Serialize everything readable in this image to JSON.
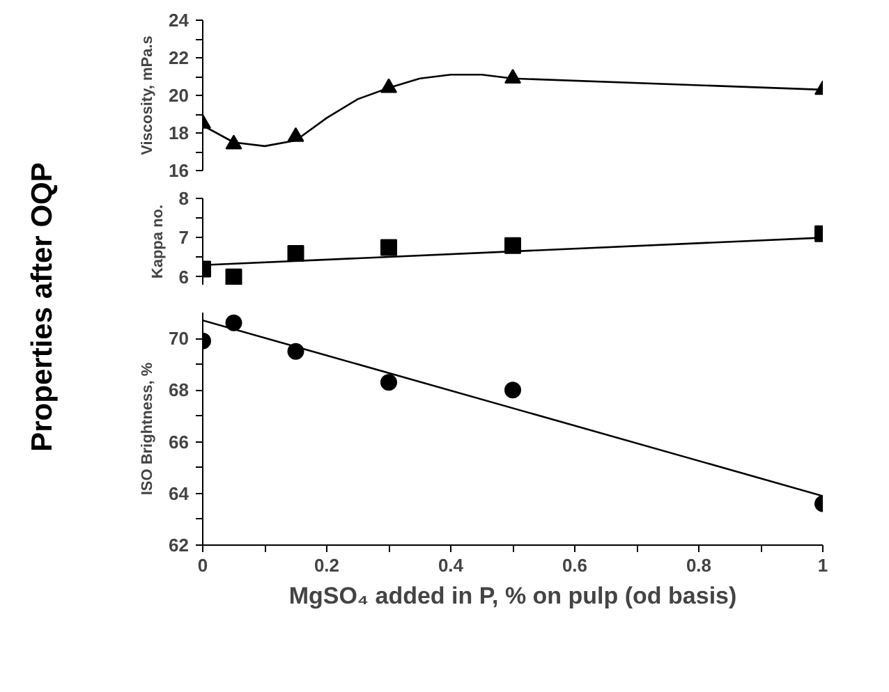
{
  "chart_data": [
    {
      "type": "scatter",
      "ylabel": "Viscosity, mPa.s",
      "annotations": [
        "Properties after OQP"
      ],
      "xlim": [
        0,
        1
      ],
      "ylim": [
        16,
        24
      ],
      "yticks": [
        16,
        {
          "value": 17,
          "label": null
        },
        18,
        {
          "value": 19,
          "label": null
        },
        20,
        {
          "value": 21,
          "label": null
        },
        22,
        {
          "value": 23,
          "label": null
        },
        24
      ],
      "tick_labels": "y",
      "grid": false,
      "series": [
        {
          "marker": "triangle",
          "color": "#000000",
          "x": [
            0,
            0.05,
            0.15,
            0.3,
            0.5,
            1
          ],
          "values": [
            18.5,
            17.4,
            17.8,
            20.4,
            20.9,
            20.3
          ]
        },
        {
          "type": "line",
          "marker": "none",
          "line_style": "solid",
          "color": "#000000",
          "x": [
            0,
            0.05,
            0.1,
            0.15,
            0.2,
            0.25,
            0.3,
            0.35,
            0.4,
            0.45,
            0.5,
            1
          ],
          "values": [
            18.4,
            17.5,
            17.3,
            17.6,
            18.8,
            19.8,
            20.4,
            20.9,
            21.1,
            21.1,
            20.9,
            20.3
          ]
        }
      ]
    },
    {
      "type": "scatter",
      "ylabel": "Kappa no.",
      "xlim": [
        0,
        1
      ],
      "ylim": [
        5.8,
        8
      ],
      "yticks": [
        6,
        {
          "value": 6.5,
          "label": null
        },
        7,
        {
          "value": 7.5,
          "label": null
        },
        8
      ],
      "tick_labels": "y",
      "grid": false,
      "series": [
        {
          "marker": "square",
          "color": "#000000",
          "x": [
            0,
            0.05,
            0.15,
            0.3,
            0.5,
            1
          ],
          "values": [
            6.2,
            6.0,
            6.6,
            6.75,
            6.8,
            7.1
          ]
        },
        {
          "type": "line",
          "marker": "none",
          "line_style": "solid",
          "color": "#000000",
          "x": [
            0,
            1
          ],
          "values": [
            6.3,
            7.0
          ]
        }
      ]
    },
    {
      "type": "scatter",
      "ylabel": "ISO Brightness, %",
      "xlabel": "MgSO₄ added in P, % on pulp (od basis)",
      "xlim": [
        0,
        1
      ],
      "xticks": [
        0,
        {
          "value": 0.1,
          "label": null
        },
        0.2,
        {
          "value": 0.3,
          "label": null
        },
        0.4,
        {
          "value": 0.5,
          "label": null
        },
        0.6,
        {
          "value": 0.7,
          "label": null
        },
        0.8,
        {
          "value": 0.9,
          "label": null
        },
        1
      ],
      "ylim": [
        62,
        71
      ],
      "yticks": [
        62,
        {
          "value": 63,
          "label": null
        },
        64,
        {
          "value": 65,
          "label": null
        },
        66,
        {
          "value": 67,
          "label": null
        },
        68,
        {
          "value": 69,
          "label": null
        },
        70
      ],
      "grid": false,
      "series": [
        {
          "marker": "circle",
          "color": "#000000",
          "x": [
            0,
            0.05,
            0.15,
            0.3,
            0.5,
            1
          ],
          "values": [
            69.9,
            70.6,
            69.5,
            68.3,
            68.0,
            63.6
          ]
        },
        {
          "type": "line",
          "marker": "none",
          "line_style": "solid",
          "color": "#000000",
          "x": [
            0,
            1
          ],
          "values": [
            70.7,
            63.9
          ]
        }
      ]
    }
  ]
}
